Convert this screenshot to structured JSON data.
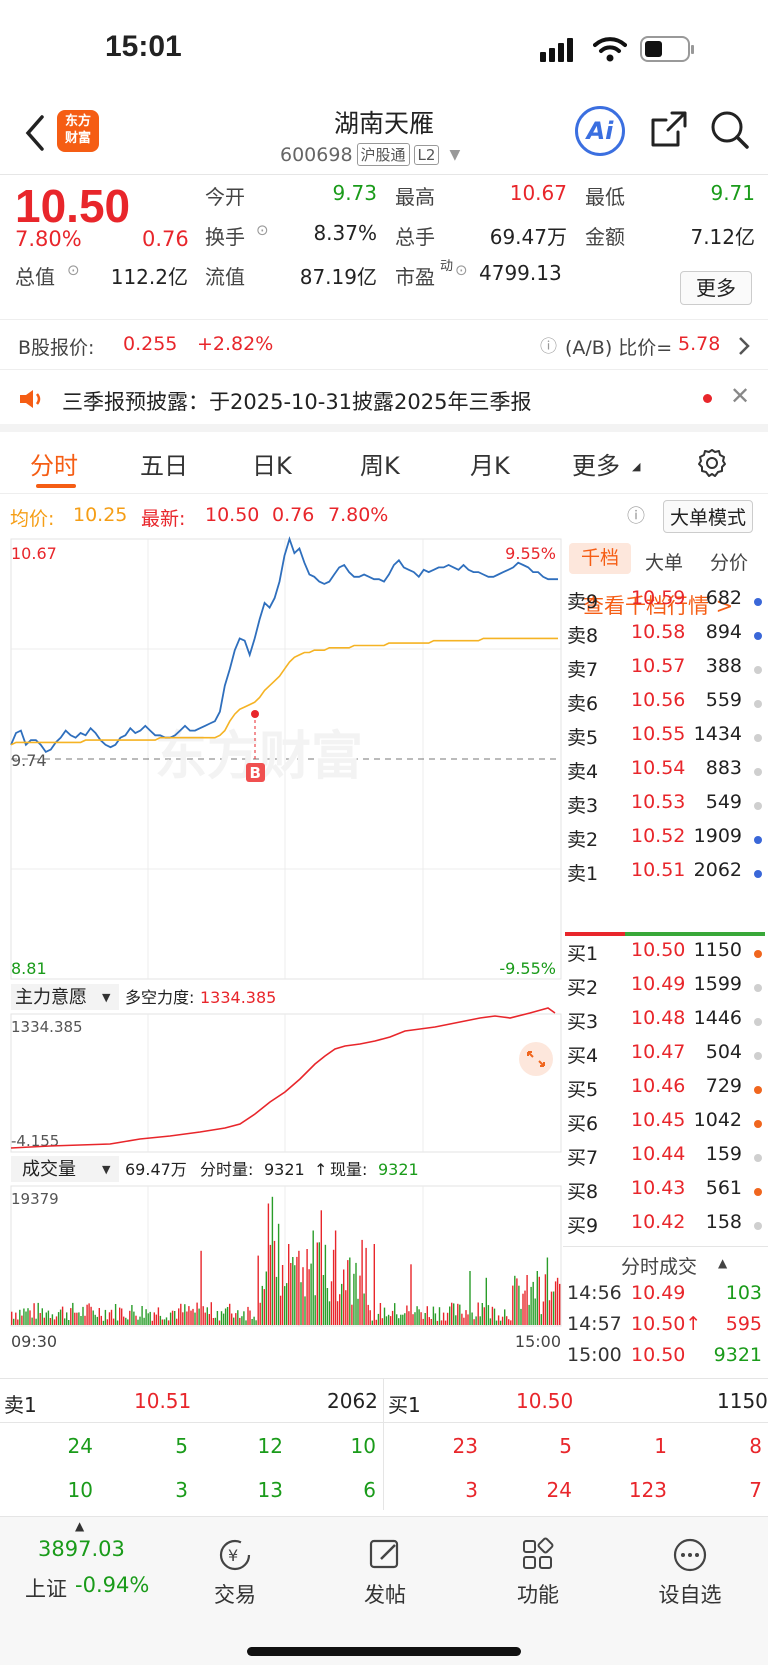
{
  "status_bar": {
    "time": "15:01"
  },
  "header": {
    "title": "湖南天雁",
    "code": "600698",
    "tag1": "沪股通",
    "tag2": "L2",
    "logo_text": "东方财富",
    "ai_label": "Ai"
  },
  "quote": {
    "price": "10.50",
    "change_pct": "7.80%",
    "change": "0.76",
    "fields": [
      {
        "label": "今开",
        "value": "9.73"
      },
      {
        "label": "最高",
        "value": "10.67"
      },
      {
        "label": "最低",
        "value": "9.71"
      },
      {
        "label": "换手",
        "value": "8.37%"
      },
      {
        "label": "总手",
        "value": "69.47万"
      },
      {
        "label": "金额",
        "value": "7.12亿"
      },
      {
        "label": "总值",
        "value": "112.2亿"
      },
      {
        "label": "流值",
        "value": "87.19亿"
      },
      {
        "label": "市盈",
        "value": "4799.13"
      }
    ],
    "pe_sup": "动",
    "more_label": "更多"
  },
  "b_share": {
    "label": "B股报价:",
    "price": "0.255",
    "pct": "+2.82%",
    "ratio_label": "(A/B) 比价=",
    "ratio": "5.78"
  },
  "notice": {
    "text": "三季报预披露：于2025-10-31披露2025年三季报"
  },
  "tabs": [
    "分时",
    "五日",
    "日K",
    "周K",
    "月K",
    "更多"
  ],
  "avg_row": {
    "avg_label": "均价:",
    "avg_value": "10.25",
    "latest_label": "最新:",
    "latest_value": "10.50",
    "latest_change": "0.76",
    "latest_pct": "7.80%",
    "big_order_label": "大单模式"
  },
  "chart": {
    "high_label": "10.67",
    "low_label": "8.81",
    "pct_high": "9.55%",
    "pct_low": "-9.55%",
    "prev_close_label": "9.74",
    "watermark": "东方财富",
    "b_marker": "B",
    "main_force": {
      "label": "主力意愿",
      "metric_label": "多空力度:",
      "metric_value": "1334.385",
      "top": "1334.385",
      "bottom": "-4.155"
    },
    "volume": {
      "label": "成交量",
      "total": "69.47万",
      "minute_label": "分时量:",
      "minute_value": "9321",
      "now_label": "现量:",
      "now_value": "9321",
      "max": "19379"
    },
    "time_start": "09:30",
    "time_end": "15:00"
  },
  "chart_data": {
    "type": "line",
    "series": [
      {
        "values": [
          9.8,
          9.85,
          9.86,
          9.8,
          9.82,
          9.82,
          9.8,
          9.77,
          9.78,
          9.81,
          9.83,
          9.86,
          9.84,
          9.83,
          9.85,
          9.84,
          9.87,
          9.85,
          9.82,
          9.8,
          9.79,
          9.8,
          9.83,
          9.84,
          9.87,
          9.85,
          9.86,
          9.88,
          9.86,
          9.84,
          9.84,
          9.83,
          9.83,
          9.84,
          9.86,
          9.88,
          9.86,
          9.86,
          9.87,
          9.88,
          9.89,
          9.9,
          9.94,
          10.05,
          10.12,
          10.2,
          10.25,
          10.24,
          10.18,
          10.25,
          10.33,
          10.4,
          10.38,
          10.42,
          10.49,
          10.6,
          10.67,
          10.61,
          10.63,
          10.57,
          10.52,
          10.51,
          10.49,
          10.48,
          10.49,
          10.52,
          10.55,
          10.56,
          10.53,
          10.51,
          10.51,
          10.52,
          10.51,
          10.5,
          10.5,
          10.49,
          10.52,
          10.56,
          10.58,
          10.55,
          10.54,
          10.53,
          10.51,
          10.54,
          10.53,
          10.54,
          10.55,
          10.55,
          10.56,
          10.55,
          10.54,
          10.56,
          10.54,
          10.53,
          10.53,
          10.52,
          10.51,
          10.51,
          10.52,
          10.53,
          10.54,
          10.55,
          10.57,
          10.56,
          10.55,
          10.53,
          10.53,
          10.51,
          10.5,
          10.5,
          10.5
        ]
      },
      {
        "values": [
          9.8,
          9.81,
          9.81,
          9.81,
          9.81,
          9.81,
          9.81,
          9.81,
          9.81,
          9.81,
          9.81,
          9.81,
          9.81,
          9.81,
          9.81,
          9.82,
          9.82,
          9.82,
          9.82,
          9.82,
          9.82,
          9.82,
          9.82,
          9.82,
          9.82,
          9.82,
          9.82,
          9.82,
          9.82,
          9.82,
          9.83,
          9.83,
          9.83,
          9.83,
          9.83,
          9.83,
          9.83,
          9.83,
          9.83,
          9.83,
          9.83,
          9.83,
          9.84,
          9.86,
          9.9,
          9.93,
          9.95,
          9.96,
          9.97,
          9.98,
          10.0,
          10.03,
          10.05,
          10.07,
          10.09,
          10.12,
          10.15,
          10.17,
          10.18,
          10.19,
          10.19,
          10.2,
          10.2,
          10.2,
          10.21,
          10.21,
          10.21,
          10.21,
          10.21,
          10.22,
          10.22,
          10.22,
          10.22,
          10.22,
          10.22,
          10.22,
          10.23,
          10.23,
          10.23,
          10.23,
          10.23,
          10.23,
          10.23,
          10.23,
          10.23,
          10.24,
          10.24,
          10.24,
          10.24,
          10.24,
          10.24,
          10.24,
          10.24,
          10.24,
          10.24,
          10.25,
          10.25,
          10.25,
          10.25,
          10.25,
          10.25,
          10.25,
          10.25,
          10.25,
          10.25,
          10.25,
          10.25,
          10.25,
          10.25,
          10.25,
          10.25
        ]
      }
    ],
    "ylim": [
      8.81,
      10.67
    ],
    "x_range": [
      "09:30",
      "15:00"
    ]
  },
  "depth": {
    "tab_labels": [
      "千档",
      "大单",
      "分价"
    ],
    "thousand_link": "查看千档行情 >",
    "asks": [
      {
        "label": "卖9",
        "price": "10.59",
        "vol": "682",
        "dot": "#3a67d8"
      },
      {
        "label": "卖8",
        "price": "10.58",
        "vol": "894",
        "dot": "#3a67d8"
      },
      {
        "label": "卖7",
        "price": "10.57",
        "vol": "388",
        "dot": "#cfcfcf"
      },
      {
        "label": "卖6",
        "price": "10.56",
        "vol": "559",
        "dot": "#cfcfcf"
      },
      {
        "label": "卖5",
        "price": "10.55",
        "vol": "1434",
        "dot": "#cfcfcf"
      },
      {
        "label": "卖4",
        "price": "10.54",
        "vol": "883",
        "dot": "#cfcfcf"
      },
      {
        "label": "卖3",
        "price": "10.53",
        "vol": "549",
        "dot": "#cfcfcf"
      },
      {
        "label": "卖2",
        "price": "10.52",
        "vol": "1909",
        "dot": "#3a67d8"
      },
      {
        "label": "卖1",
        "price": "10.51",
        "vol": "2062",
        "dot": "#3a67d8"
      }
    ],
    "bids": [
      {
        "label": "买1",
        "price": "10.50",
        "vol": "1150",
        "dot": "#f0661e"
      },
      {
        "label": "买2",
        "price": "10.49",
        "vol": "1599",
        "dot": "#cfcfcf"
      },
      {
        "label": "买3",
        "price": "10.48",
        "vol": "1446",
        "dot": "#cfcfcf"
      },
      {
        "label": "买4",
        "price": "10.47",
        "vol": "504",
        "dot": "#cfcfcf"
      },
      {
        "label": "买5",
        "price": "10.46",
        "vol": "729",
        "dot": "#f0661e"
      },
      {
        "label": "买6",
        "price": "10.45",
        "vol": "1042",
        "dot": "#f0661e"
      },
      {
        "label": "买7",
        "price": "10.44",
        "vol": "159",
        "dot": "#cfcfcf"
      },
      {
        "label": "买8",
        "price": "10.43",
        "vol": "561",
        "dot": "#f0661e"
      },
      {
        "label": "买9",
        "price": "10.42",
        "vol": "158",
        "dot": "#cfcfcf"
      }
    ],
    "ticks_label": "分时成交",
    "ticks": [
      {
        "time": "14:56",
        "price": "10.49",
        "vol": "103",
        "color": "#1a9b1a"
      },
      {
        "time": "14:57",
        "price": "10.50↑",
        "vol": "595",
        "color": "#e8262b"
      },
      {
        "time": "15:00",
        "price": "10.50",
        "vol": "9321",
        "color": "#1a9b1a"
      }
    ]
  },
  "bottom": {
    "sell1": {
      "label": "卖1",
      "price": "10.51",
      "vol": "2062"
    },
    "buy1": {
      "label": "买1",
      "price": "10.50",
      "vol": "1150"
    },
    "left_rows": [
      [
        "24",
        "5",
        "12",
        "10"
      ],
      [
        "10",
        "3",
        "13",
        "6"
      ]
    ],
    "right_rows": [
      [
        "23",
        "5",
        "1",
        "8"
      ],
      [
        "3",
        "24",
        "123",
        "7"
      ]
    ]
  },
  "nav": {
    "index_value": "3897.03",
    "index_name": "上证",
    "index_pct": "-0.94%",
    "items": [
      "交易",
      "发帖",
      "功能",
      "设自选"
    ]
  },
  "colors": {
    "up": "#e8262b",
    "down": "#1a9b1a",
    "price_line": "#2f6fbd",
    "avg_line": "#f5b324",
    "brand": "#f55d14"
  }
}
